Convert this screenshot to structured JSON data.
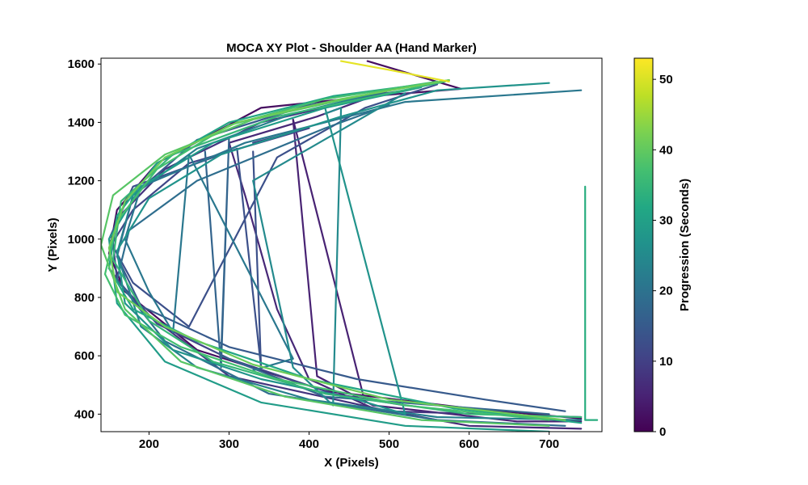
{
  "chart_data": {
    "type": "line",
    "title": "MOCA XY Plot - Shoulder AA (Hand Marker)",
    "xlabel": "X (Pixels)",
    "ylabel": "Y (Pixels)",
    "xlim": [
      140,
      766
    ],
    "ylim": [
      340,
      1620
    ],
    "x_ticks": [
      200,
      300,
      400,
      500,
      600,
      700
    ],
    "y_ticks": [
      400,
      600,
      800,
      1000,
      1200,
      1400,
      1600
    ],
    "grid": false,
    "colorbar": {
      "label": "Progression (Seconds)",
      "range": [
        0,
        53
      ],
      "ticks": [
        0,
        10,
        20,
        30,
        40,
        50
      ],
      "colormap": "viridis"
    },
    "series": [
      {
        "t": 2,
        "x": [
          473,
          590,
          545,
          480,
          340,
          210,
          160,
          150,
          170,
          260,
          420,
          600,
          740
        ],
        "y": [
          1610,
          1515,
          1505,
          1490,
          1450,
          1260,
          1100,
          950,
          820,
          620,
          480,
          420,
          385
        ]
      },
      {
        "t": 5,
        "x": [
          740,
          660,
          480,
          410,
          380,
          470
        ],
        "y": [
          375,
          375,
          430,
          530,
          1410,
          440
        ]
      },
      {
        "t": 6,
        "x": [
          740,
          600,
          480,
          400,
          360,
          320,
          300,
          410,
          500
        ],
        "y": [
          350,
          360,
          420,
          520,
          760,
          1150,
          1330,
          1420,
          1510
        ]
      },
      {
        "t": 8,
        "x": [
          740,
          500,
          300,
          190,
          150,
          160,
          220,
          340,
          480,
          530
        ],
        "y": [
          390,
          410,
          530,
          760,
          900,
          1070,
          1240,
          1400,
          1490,
          1515
        ]
      },
      {
        "t": 11,
        "x": [
          330,
          400,
          250,
          180,
          155,
          160,
          210,
          300,
          430,
          520
        ],
        "y": [
          1330,
          1380,
          1260,
          1100,
          990,
          860,
          710,
          590,
          470,
          430
        ]
      },
      {
        "t": 13,
        "x": [
          330,
          340,
          310,
          180,
          150,
          180,
          250,
          360,
          470,
          560
        ],
        "y": [
          1300,
          560,
          1310,
          1180,
          1000,
          850,
          700,
          1280,
          1450,
          1530
        ]
      },
      {
        "t": 15,
        "x": [
          520,
          400,
          260,
          180,
          160,
          190,
          300,
          460,
          620,
          720
        ],
        "y": [
          1510,
          1460,
          1340,
          1150,
          940,
          770,
          630,
          520,
          450,
          410
        ]
      },
      {
        "t": 17,
        "x": [
          700,
          420,
          290,
          300,
          290,
          270
        ],
        "y": [
          400,
          460,
          600,
          1350,
          560,
          1300
        ]
      },
      {
        "t": 19,
        "x": [
          720,
          560,
          350,
          220,
          160,
          175,
          260,
          420,
          500
        ],
        "y": [
          360,
          380,
          470,
          650,
          860,
          1030,
          1200,
          1380,
          1460
        ]
      },
      {
        "t": 21,
        "x": [
          330,
          380,
          250,
          230,
          200,
          170,
          190,
          320,
          520,
          740
        ],
        "y": [
          550,
          590,
          1290,
          680,
          820,
          1000,
          1180,
          1330,
          1470,
          1510
        ]
      },
      {
        "t": 23,
        "x": [
          740,
          560,
          400,
          260,
          190,
          160,
          180,
          260,
          380,
          500,
          560
        ],
        "y": [
          380,
          390,
          450,
          560,
          700,
          950,
          1150,
          1310,
          1430,
          1510,
          1540
        ]
      },
      {
        "t": 25,
        "x": [
          520,
          330,
          380,
          430,
          440,
          420
        ],
        "y": [
          1500,
          1200,
          560,
          430,
          1450,
          1430
        ]
      },
      {
        "t": 27,
        "x": [
          420,
          520,
          460,
          340,
          230,
          170,
          160,
          200,
          290,
          440,
          560,
          700
        ],
        "y": [
          1450,
          400,
          450,
          520,
          620,
          780,
          960,
          1140,
          1290,
          1420,
          1510,
          1535
        ]
      },
      {
        "t": 29,
        "x": [
          700,
          520,
          340,
          220,
          160,
          150,
          190,
          280,
          420,
          540
        ],
        "y": [
          340,
          360,
          440,
          580,
          780,
          1000,
          1180,
          1330,
          1450,
          1520
        ]
      },
      {
        "t": 31,
        "x": [
          540,
          430,
          300,
          210,
          160,
          150,
          180,
          260,
          400,
          580,
          740
        ],
        "y": [
          1530,
          1490,
          1400,
          1260,
          1080,
          900,
          760,
          650,
          520,
          420,
          370
        ]
      },
      {
        "t": 33,
        "x": [
          760,
          745,
          745,
          745,
          745
        ],
        "y": [
          380,
          380,
          1180,
          380,
          380
        ]
      },
      {
        "t": 35,
        "x": [
          740,
          600,
          420,
          280,
          200,
          155,
          165,
          230,
          360,
          500,
          570
        ],
        "y": [
          390,
          400,
          470,
          580,
          720,
          930,
          1130,
          1290,
          1420,
          1500,
          1540
        ]
      },
      {
        "t": 37,
        "x": [
          560,
          420,
          300,
          210,
          160,
          145,
          170,
          240,
          360,
          520,
          700
        ],
        "y": [
          1540,
          1480,
          1390,
          1240,
          1060,
          880,
          740,
          630,
          520,
          430,
          380
        ]
      },
      {
        "t": 39,
        "x": [
          700,
          540,
          370,
          240,
          170,
          140,
          155,
          220,
          330,
          480,
          575
        ],
        "y": [
          360,
          380,
          460,
          580,
          760,
          980,
          1150,
          1290,
          1410,
          1500,
          1545
        ]
      },
      {
        "t": 41,
        "x": [
          575,
          440,
          310,
          220,
          170,
          150,
          160,
          220,
          330,
          500,
          720
        ],
        "y": [
          1545,
          1480,
          1400,
          1280,
          1130,
          970,
          820,
          700,
          570,
          450,
          380
        ]
      },
      {
        "t": 51,
        "x": [
          440,
          500,
          575
        ],
        "y": [
          1610,
          1580,
          1540
        ]
      }
    ]
  }
}
